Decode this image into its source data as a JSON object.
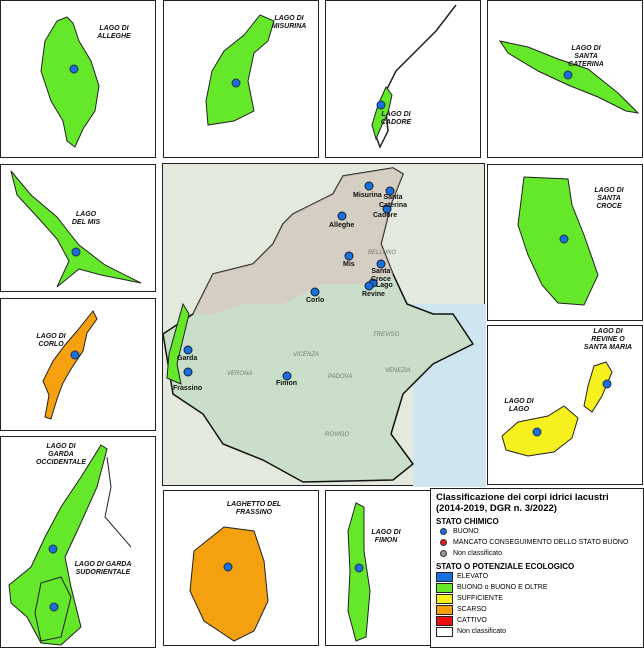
{
  "panels": [
    {
      "id": "alleghe",
      "label": "LAGO DI\nALLEGHE",
      "color": "#66e82a"
    },
    {
      "id": "misurina",
      "label": "LAGO DI\nMISURINA",
      "color": "#66e82a"
    },
    {
      "id": "cadore",
      "label": "LAGO DI\nCADORE",
      "color": "#66e82a"
    },
    {
      "id": "santa_caterina",
      "label": "LAGO DI\nSANTA\nCATERINA",
      "color": "#66e82a"
    },
    {
      "id": "mis",
      "label": "LAGO\nDEL MIS",
      "color": "#66e82a"
    },
    {
      "id": "santa_croce",
      "label": "LAGO DI\nSANTA\nCROCE",
      "color": "#66e82a"
    },
    {
      "id": "corlo",
      "label": "LAGO DI\nCORLO",
      "color": "#f5a00f"
    },
    {
      "id": "revine",
      "label": "LAGO DI\nREVINE O\nSANTA MARIA",
      "label2": "LAGO DI\nLAGO",
      "color": "#f5f01e"
    },
    {
      "id": "garda",
      "label": "LAGO DI\nGARDA\nOCCIDENTALE",
      "label2": "LAGO DI GARDA\nSUDORIENTALE",
      "color": "#66e82a"
    },
    {
      "id": "frassino",
      "label": "LAGHETTO DEL\nFRASSINO",
      "color": "#f5a00f"
    },
    {
      "id": "fimon",
      "label": "LAGO DI\nFIMON",
      "color": "#66e82a"
    }
  ],
  "map": {
    "lakes": [
      "Misurina",
      "Santa\nCaterina",
      "Cadore",
      "Alleghe",
      "Mis",
      "Santa\nCroce",
      "Lago",
      "Revine",
      "Corlo",
      "Garda",
      "Frassino",
      "Fimon"
    ],
    "provinces": [
      "BELLUNO",
      "TREVISO",
      "VICENZA",
      "VERONA",
      "PADOVA",
      "VENEZIA",
      "ROVIGO"
    ]
  },
  "legend": {
    "title": "Classificazione dei corpi idrici lacustri\n(2014-2019, DGR n. 3/2022)",
    "chem_title": "STATO CHIMICO",
    "chem": [
      {
        "label": "BUONO",
        "color": "#1a6fe0"
      },
      {
        "label": "MANCATO CONSEGUIMENTO DELLO STATO BUONO",
        "color": "#e01a1a"
      },
      {
        "label": "Non classificato",
        "color": "#999999"
      }
    ],
    "eco_title": "STATO O POTENZIALE ECOLOGICO",
    "eco": [
      {
        "label": "ELEVATO",
        "color": "#1a6fe0"
      },
      {
        "label": "BUONO o BUONO E OLTRE",
        "color": "#66e82a"
      },
      {
        "label": "SUFFICIENTE",
        "color": "#f5f01e"
      },
      {
        "label": "SCARSO",
        "color": "#f5a00f"
      },
      {
        "label": "CATTIVO",
        "color": "#e81010"
      },
      {
        "label": "Non classificato",
        "color": "#ffffff"
      }
    ]
  }
}
